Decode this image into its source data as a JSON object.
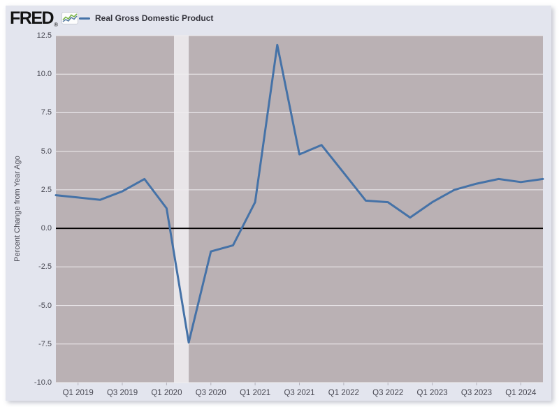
{
  "brand": {
    "logo_text": "FRED",
    "registered_mark": "®",
    "logo_icon": "sparkline-chart-icon"
  },
  "legend": {
    "series_label": "Real Gross Domestic Product",
    "series_color": "#4572a7"
  },
  "chart_data": {
    "type": "line",
    "title": "Real Gross Domestic Product",
    "ylabel": "Percent Change from Year Ago",
    "xlabel": "",
    "categories": [
      "Q4 2018",
      "Q1 2019",
      "Q2 2019",
      "Q3 2019",
      "Q4 2019",
      "Q1 2020",
      "Q2 2020",
      "Q3 2020",
      "Q4 2020",
      "Q1 2021",
      "Q2 2021",
      "Q3 2021",
      "Q4 2021",
      "Q1 2022",
      "Q2 2022",
      "Q3 2022",
      "Q4 2022",
      "Q1 2023",
      "Q2 2023",
      "Q3 2023",
      "Q4 2023",
      "Q1 2024",
      "Q2 2024"
    ],
    "series": [
      {
        "name": "Real Gross Domestic Product",
        "values": [
          2.15,
          2.0,
          1.85,
          2.4,
          3.2,
          1.3,
          -7.4,
          -1.5,
          -1.1,
          1.7,
          11.9,
          4.8,
          5.4,
          3.6,
          1.8,
          1.7,
          0.7,
          1.7,
          2.5,
          2.9,
          3.2,
          3.0,
          3.2
        ]
      }
    ],
    "y_ticks": [
      12.5,
      10.0,
      7.5,
      5.0,
      2.5,
      0.0,
      -2.5,
      -5.0,
      -7.5,
      -10.0
    ],
    "ylim": [
      -10.0,
      12.5
    ],
    "x_tick_labels": [
      "Q1 2019",
      "Q3 2019",
      "Q1 2020",
      "Q3 2020",
      "Q1 2021",
      "Q3 2021",
      "Q1 2022",
      "Q3 2022",
      "Q1 2023",
      "Q3 2023",
      "Q1 2024"
    ],
    "x_start_quarter": "2018-10",
    "recession_band": {
      "start_month": "2020-02",
      "end_month": "2020-04"
    },
    "zero_line": true,
    "grid": "horizontal",
    "legend_position": "top-left"
  },
  "colors": {
    "surface_bg": "#e3e5ee",
    "plot_bg": "#bab1b4",
    "recession_band": "#e9e6e9",
    "gridline": "#efedef",
    "zero_line": "#000000",
    "line": "#4572a7",
    "tick_text": "#474751",
    "tick_mark": "#b3b1bb",
    "logo_icon_blue": "#5b7ea6",
    "logo_icon_green": "#7ab648"
  }
}
